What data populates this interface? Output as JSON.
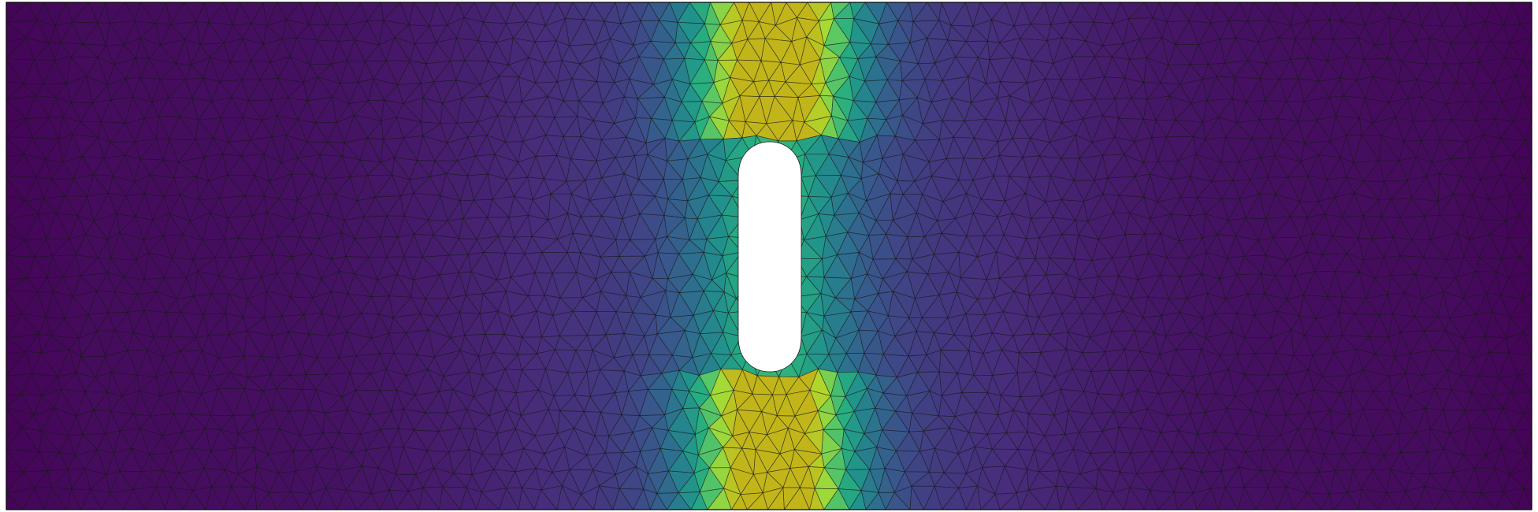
{
  "visualization": {
    "type": "finite-element-mesh-contour",
    "colormap": "viridis",
    "colormap_stops": [
      "#440154",
      "#472d7b",
      "#3b528b",
      "#2c728e",
      "#21918c",
      "#28ae80",
      "#5ec962",
      "#addc30",
      "#c2b51a"
    ],
    "background_color": "#ffffff",
    "mesh_line_color": "#1a1a1a",
    "outline_color": "#000000",
    "mesh": {
      "type": "triangular",
      "columns": 78,
      "rows": 26
    },
    "hole": {
      "shape": "slot",
      "fill_color": "#ffffff"
    },
    "field": {
      "concentration": "around-hole-vertical-band",
      "max_location": "above-and-below-hole"
    }
  }
}
